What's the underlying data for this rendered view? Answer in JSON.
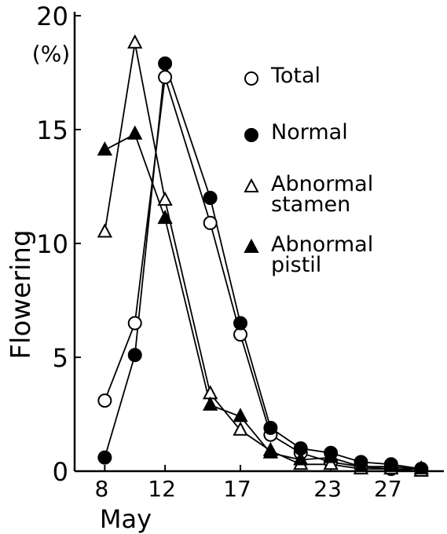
{
  "chart_data": {
    "type": "line",
    "y_label": "Flowering",
    "y_unit": "(%)",
    "x_label": "May",
    "x": [
      8,
      10,
      12,
      15,
      17,
      19,
      21,
      23,
      25,
      27,
      29
    ],
    "xlim": [
      6,
      30.5
    ],
    "xticks": [
      8,
      12,
      17,
      23,
      27
    ],
    "ylim": [
      0,
      20
    ],
    "yticks": [
      0,
      5,
      10,
      15,
      20
    ],
    "series": [
      {
        "name": "Total",
        "color": "#000",
        "marker": "circle",
        "filled": false,
        "values": [
          3.1,
          6.5,
          17.3,
          10.9,
          6.0,
          1.6,
          0.8,
          0.4,
          0.2,
          0.1,
          0.1
        ]
      },
      {
        "name": "Normal",
        "color": "#000",
        "marker": "circle",
        "filled": true,
        "values": [
          0.6,
          5.1,
          17.9,
          12.0,
          6.5,
          1.9,
          1.0,
          0.8,
          0.4,
          0.3,
          0.1
        ]
      },
      {
        "name": "Abnormal stamen",
        "color": "#000",
        "marker": "triangle",
        "filled": false,
        "values": [
          10.5,
          18.8,
          11.9,
          3.4,
          1.8,
          0.9,
          0.3,
          0.3,
          0.1,
          0.1,
          0.0
        ]
      },
      {
        "name": "Abnormal pistil",
        "color": "#000",
        "marker": "triangle",
        "filled": true,
        "values": [
          14.1,
          14.8,
          11.1,
          2.9,
          2.4,
          0.8,
          0.5,
          0.6,
          0.2,
          0.2,
          0.1
        ]
      }
    ]
  }
}
